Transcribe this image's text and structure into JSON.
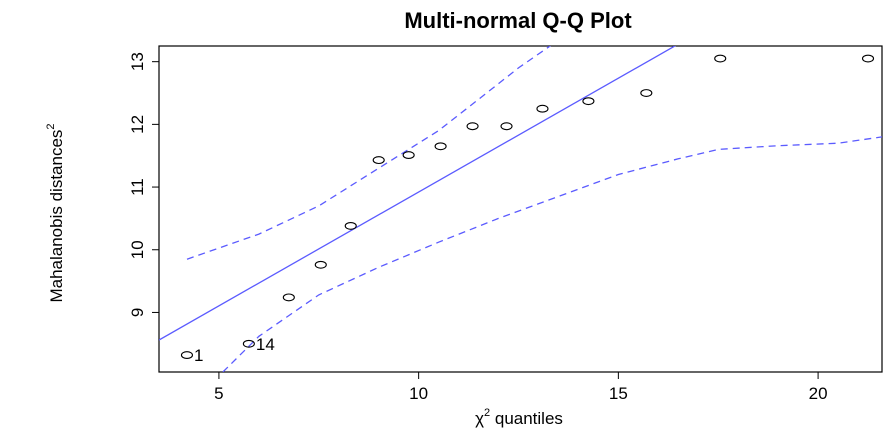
{
  "chart_data": {
    "type": "scatter",
    "title": "Multi-normal Q-Q Plot",
    "xlabel": "χ",
    "xlabel_sup": "2",
    "xlabel_rest": " quantiles",
    "ylabel": "Mahalanobis distances",
    "ylabel_sup": "2",
    "xlim": [
      3.5,
      21.6
    ],
    "ylim": [
      8.05,
      13.25
    ],
    "x_ticks": [
      5,
      10,
      15,
      20
    ],
    "y_ticks": [
      9,
      10,
      11,
      12,
      13
    ],
    "grid": false,
    "colors": {
      "points": "#000000",
      "lines": "#5b5bff"
    },
    "points": [
      {
        "x": 4.2,
        "y": 8.32,
        "label": "1"
      },
      {
        "x": 5.75,
        "y": 8.5,
        "label": "14"
      },
      {
        "x": 6.75,
        "y": 9.24,
        "label": ""
      },
      {
        "x": 7.55,
        "y": 9.76,
        "label": ""
      },
      {
        "x": 8.3,
        "y": 10.38,
        "label": ""
      },
      {
        "x": 9.0,
        "y": 11.43,
        "label": ""
      },
      {
        "x": 9.75,
        "y": 11.51,
        "label": ""
      },
      {
        "x": 10.55,
        "y": 11.65,
        "label": ""
      },
      {
        "x": 11.35,
        "y": 11.97,
        "label": ""
      },
      {
        "x": 12.2,
        "y": 11.97,
        "label": ""
      },
      {
        "x": 13.1,
        "y": 12.25,
        "label": ""
      },
      {
        "x": 14.25,
        "y": 12.37,
        "label": ""
      },
      {
        "x": 15.7,
        "y": 12.5,
        "label": ""
      },
      {
        "x": 17.55,
        "y": 13.05,
        "label": ""
      },
      {
        "x": 21.25,
        "y": 13.05,
        "label": ""
      }
    ],
    "reference_line": {
      "x": [
        3.5,
        16.55
      ],
      "y": [
        8.56,
        13.3
      ]
    },
    "upper_envelope": {
      "x": [
        4.2,
        6.0,
        7.5,
        9.0,
        10.5,
        11.5,
        12.5,
        13.4
      ],
      "y": [
        9.85,
        10.25,
        10.7,
        11.3,
        11.9,
        12.4,
        12.9,
        13.3
      ]
    },
    "lower_envelope": {
      "x": [
        5.1,
        6.0,
        7.5,
        9.0,
        10.5,
        12.0,
        13.5,
        15.0,
        16.5,
        17.5,
        19.0,
        20.5,
        21.6
      ],
      "y": [
        8.05,
        8.62,
        9.28,
        9.72,
        10.12,
        10.5,
        10.85,
        11.2,
        11.45,
        11.6,
        11.66,
        11.7,
        11.8
      ]
    }
  }
}
